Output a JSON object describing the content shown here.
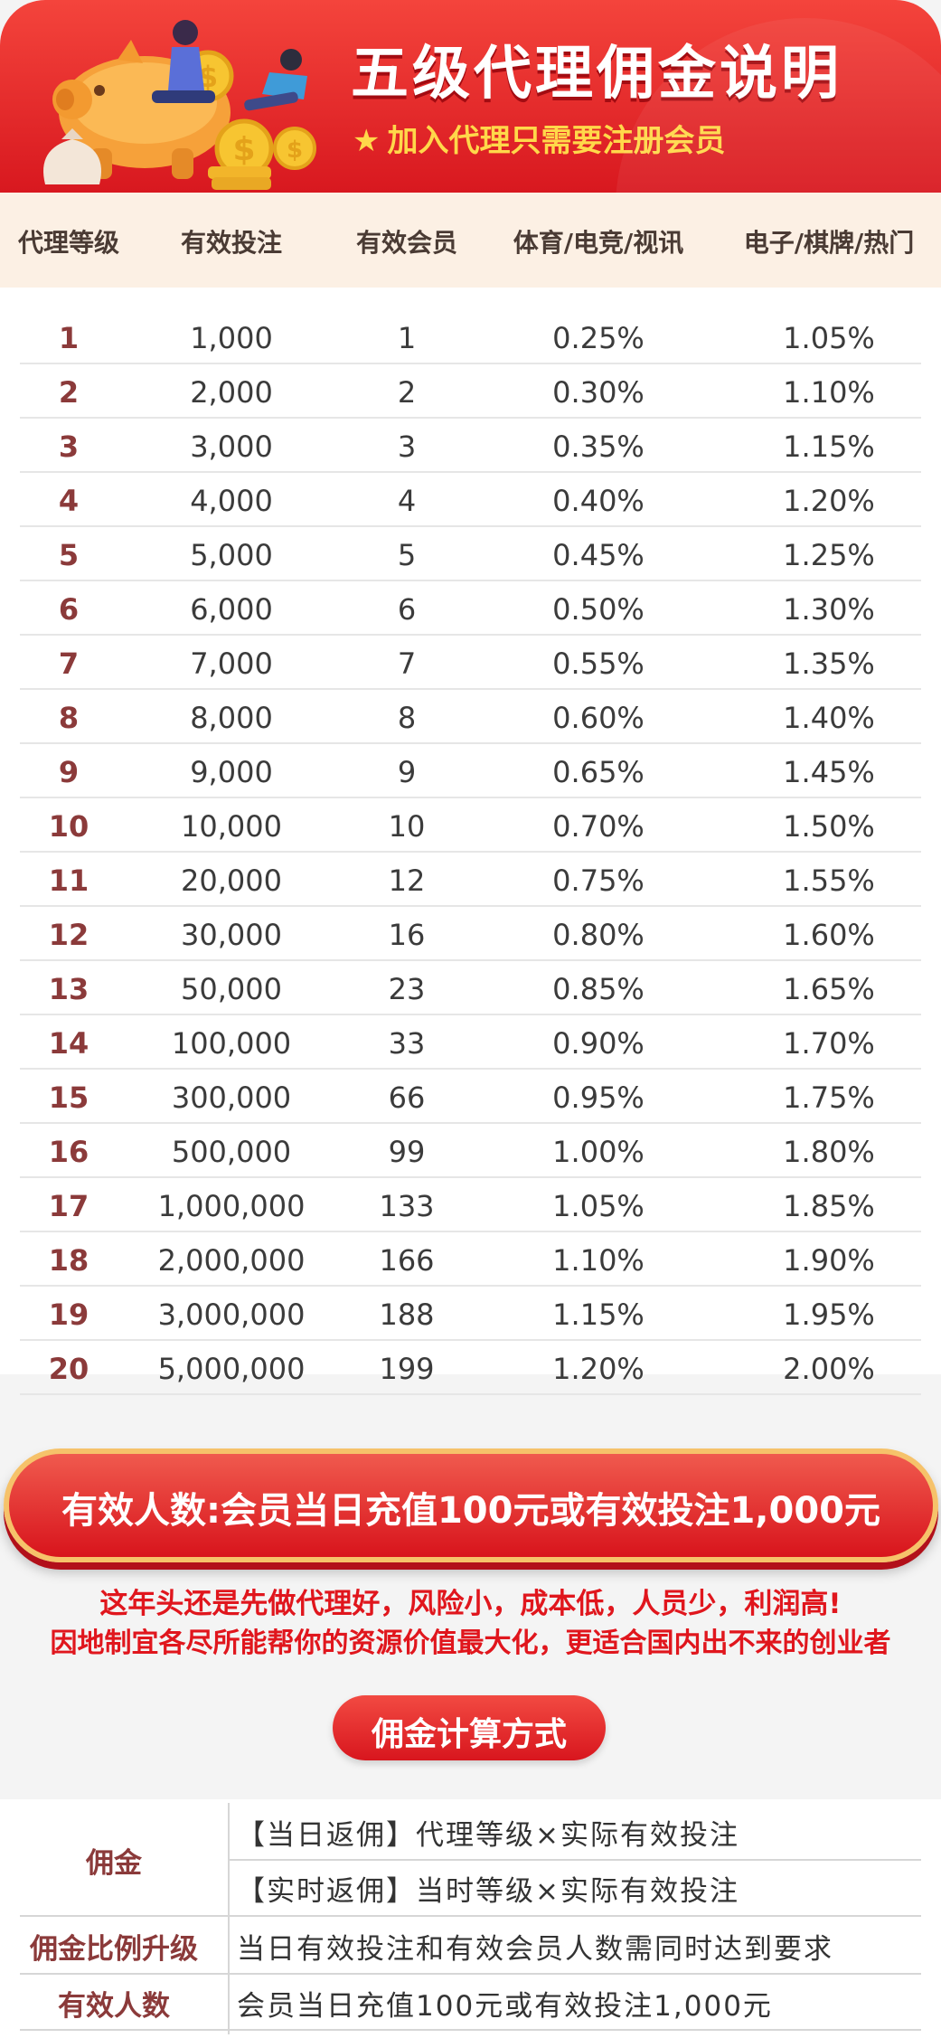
{
  "header": {
    "title": "五级代理佣金说明",
    "subtitle": "加入代理只需要注册会员",
    "star": "★"
  },
  "table": {
    "columns": [
      "代理等级",
      "有效投注",
      "有效会员",
      "体育/电竞/视讯",
      "电子/棋牌/热门"
    ],
    "rows": [
      [
        "1",
        "1,000",
        "1",
        "0.25%",
        "1.05%"
      ],
      [
        "2",
        "2,000",
        "2",
        "0.30%",
        "1.10%"
      ],
      [
        "3",
        "3,000",
        "3",
        "0.35%",
        "1.15%"
      ],
      [
        "4",
        "4,000",
        "4",
        "0.40%",
        "1.20%"
      ],
      [
        "5",
        "5,000",
        "5",
        "0.45%",
        "1.25%"
      ],
      [
        "6",
        "6,000",
        "6",
        "0.50%",
        "1.30%"
      ],
      [
        "7",
        "7,000",
        "7",
        "0.55%",
        "1.35%"
      ],
      [
        "8",
        "8,000",
        "8",
        "0.60%",
        "1.40%"
      ],
      [
        "9",
        "9,000",
        "9",
        "0.65%",
        "1.45%"
      ],
      [
        "10",
        "10,000",
        "10",
        "0.70%",
        "1.50%"
      ],
      [
        "11",
        "20,000",
        "12",
        "0.75%",
        "1.55%"
      ],
      [
        "12",
        "30,000",
        "16",
        "0.80%",
        "1.60%"
      ],
      [
        "13",
        "50,000",
        "23",
        "0.85%",
        "1.65%"
      ],
      [
        "14",
        "100,000",
        "33",
        "0.90%",
        "1.70%"
      ],
      [
        "15",
        "300,000",
        "66",
        "0.95%",
        "1.75%"
      ],
      [
        "16",
        "500,000",
        "99",
        "1.00%",
        "1.80%"
      ],
      [
        "17",
        "1,000,000",
        "133",
        "1.05%",
        "1.85%"
      ],
      [
        "18",
        "2,000,000",
        "166",
        "1.10%",
        "1.90%"
      ],
      [
        "19",
        "3,000,000",
        "188",
        "1.15%",
        "1.95%"
      ],
      [
        "20",
        "5,000,000",
        "199",
        "1.20%",
        "2.00%"
      ]
    ]
  },
  "notice": {
    "pill": "有效人数:会员当日充值100元或有效投注1,000元",
    "line1": "这年头还是先做代理好，风险小，成本低，人员少，利润高!",
    "line2": "因地制宜各尽所能帮你的资源价值最大化，更适合国内出不来的创业者"
  },
  "method": {
    "button": "佣金计算方式",
    "label_commission": "佣金",
    "daily_rebate": "【当日返佣】代理等级×实际有效投注",
    "realtime_rebate": "【实时返佣】当时等级×实际有效投注",
    "label_upgrade": "佣金比例升级",
    "upgrade_text": "当日有效投注和有效会员人数需同时达到要求",
    "label_valid": "有效人数",
    "valid_text": "会员当日充值100元或有效投注1,000元"
  },
  "colors": {
    "banner_red": "#d8181f",
    "accent_yellow": "#ffd84a",
    "level_text": "#8b3a3a",
    "header_bg": "#fcf0e4"
  }
}
